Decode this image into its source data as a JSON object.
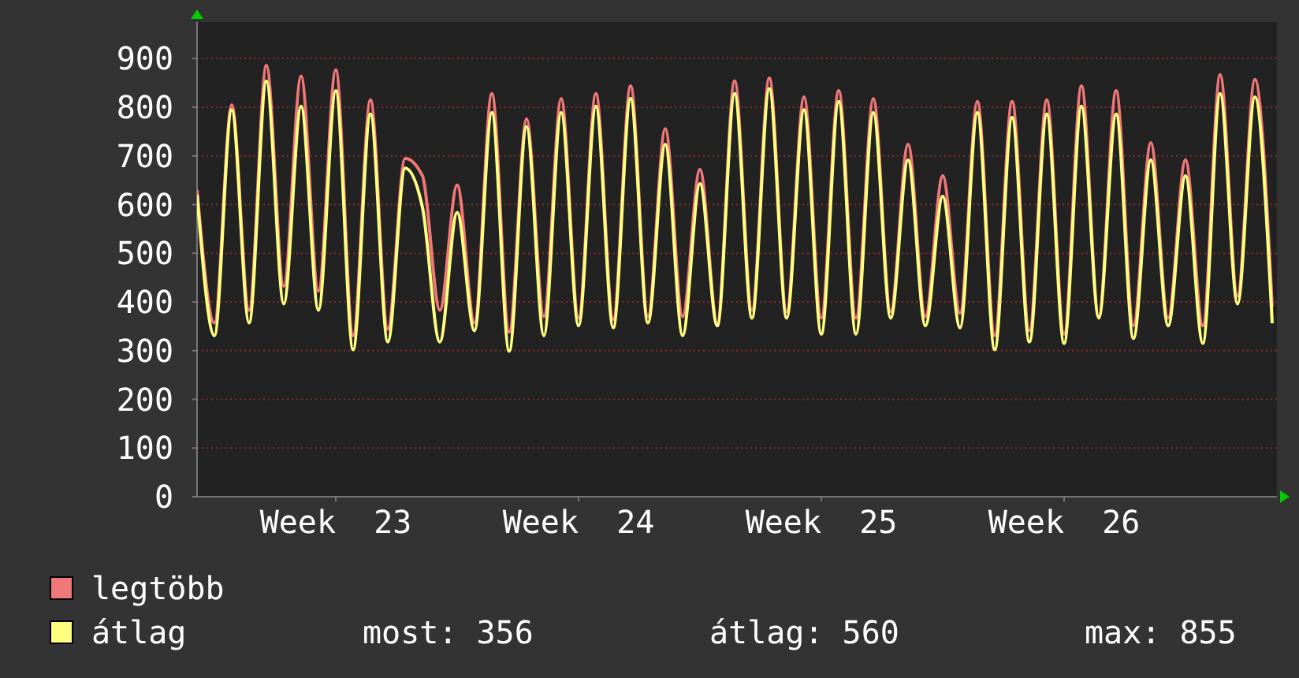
{
  "chart_data": {
    "type": "line",
    "categories": [
      null,
      null,
      null,
      null,
      null,
      null,
      null,
      null,
      "Week  23",
      null,
      null,
      null,
      null,
      null,
      null,
      null,
      null,
      null,
      null,
      null,
      null,
      null,
      "Week  24",
      null,
      null,
      null,
      null,
      null,
      null,
      null,
      null,
      null,
      null,
      null,
      null,
      null,
      "Week  25",
      null,
      null,
      null,
      null,
      null,
      null,
      null,
      null,
      null,
      null,
      null,
      null,
      null,
      "Week  26",
      null,
      null,
      null,
      null,
      null,
      null,
      null,
      null,
      null,
      null,
      null,
      null
    ],
    "series": [
      {
        "name": "legtöbb",
        "color": "#f07878",
        "values": [
          630,
          357,
          805,
          383,
          886,
          432,
          864,
          422,
          877,
          331,
          815,
          344,
          695,
          659,
          383,
          640,
          357,
          828,
          338,
          776,
          370,
          818,
          367,
          828,
          364,
          844,
          370,
          756,
          370,
          672,
          357,
          854,
          383,
          860,
          380,
          821,
          367,
          834,
          367,
          818,
          380,
          724,
          370,
          659,
          377,
          812,
          331,
          812,
          341,
          815,
          334,
          844,
          370,
          834,
          351,
          727,
          367,
          692,
          351,
          867,
          412,
          857,
          390
        ]
      },
      {
        "name": "átlag",
        "color": "#ffff80",
        "values": [
          620,
          331,
          795,
          357,
          854,
          396,
          802,
          383,
          834,
          302,
          786,
          318,
          675,
          594,
          318,
          584,
          341,
          789,
          299,
          760,
          331,
          789,
          351,
          802,
          347,
          818,
          357,
          724,
          331,
          643,
          351,
          828,
          367,
          838,
          367,
          795,
          334,
          812,
          334,
          789,
          367,
          692,
          351,
          617,
          347,
          789,
          302,
          779,
          318,
          786,
          315,
          802,
          367,
          786,
          325,
          692,
          351,
          659,
          315,
          828,
          396,
          821,
          356
        ]
      }
    ],
    "ylim": [
      0,
      975
    ],
    "yticks": [
      0,
      100,
      200,
      300,
      400,
      500,
      600,
      700,
      800,
      900
    ],
    "grid": "y",
    "legend": "bottom",
    "marker": "none",
    "line_style": "solid",
    "annotations": [
      "most: 356",
      "átlag: 560",
      "max: 855"
    ]
  }
}
